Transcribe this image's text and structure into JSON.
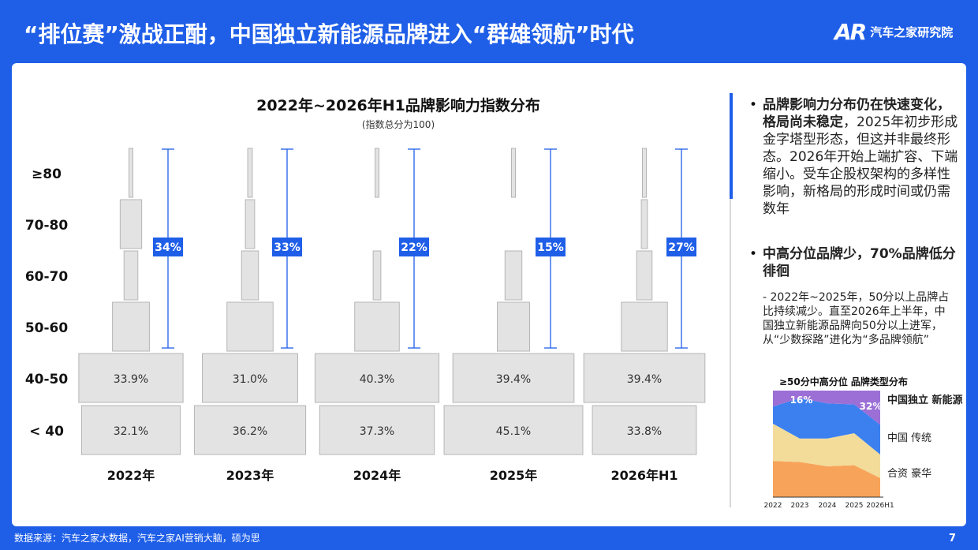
{
  "page": {
    "title": "“排位赛”激战正酣，中国独立新能源品牌进入“群雄领航”时代",
    "logo_text": "汽车之家研究院",
    "logo_mark": "AR",
    "footer": "数据来源：汽车之家大数据，汽车之家AI营销大脑，硕为思",
    "page_number": "7",
    "colors": {
      "brand_blue": "#1f5fe8",
      "bar_gray": "#e3e3e3",
      "purple": "#9b6fd6",
      "blue": "#3c80f0",
      "yellow": "#f3dc9a",
      "orange": "#f7a45a"
    }
  },
  "chart_data": [
    {
      "type": "bar",
      "title": "2022年~2026年H1品牌影响力指数分布",
      "subtitle": "(指数总分为100)",
      "categories": [
        "≥80",
        "70-80",
        "60-70",
        "50-60",
        "40-50",
        "< 40"
      ],
      "years": [
        "2022年",
        "2023年",
        "2024年",
        "2025年",
        "2026年H1"
      ],
      "series": [
        {
          "name": "2022年",
          "values": [
            0.5,
            7.0,
            4.5,
            12.0,
            33.9,
            32.1
          ],
          "labels": [
            "",
            "",
            "",
            "",
            "33.9%",
            "32.1%"
          ],
          "above50_pct": "34%"
        },
        {
          "name": "2023年",
          "values": [
            1.5,
            3.0,
            5.5,
            15.0,
            31.0,
            36.2
          ],
          "labels": [
            "",
            "",
            "",
            "",
            "31.0%",
            "36.2%"
          ],
          "above50_pct": "33%"
        },
        {
          "name": "2024年",
          "values": [
            0.5,
            0.0,
            2.5,
            14.5,
            40.3,
            37.3
          ],
          "labels": [
            "",
            "",
            "",
            "",
            "40.3%",
            "37.3%"
          ],
          "above50_pct": "22%"
        },
        {
          "name": "2025年",
          "values": [
            0.5,
            0.0,
            5.5,
            10.5,
            39.4,
            45.1
          ],
          "labels": [
            "",
            "",
            "",
            "",
            "39.4%",
            "45.1%"
          ],
          "above50_pct": "15%"
        },
        {
          "name": "2026年H1",
          "values": [
            0.8,
            2.0,
            5.0,
            15.0,
            39.4,
            33.8
          ],
          "labels": [
            "",
            "",
            "",
            "",
            "39.4%",
            "33.8%"
          ],
          "above50_pct": "27%"
        }
      ],
      "unit": "%"
    },
    {
      "type": "area",
      "title": "≥50分中高分位 品牌类型分布",
      "x": [
        "2022",
        "2023",
        "2024",
        "2025",
        "2026H1"
      ],
      "series": [
        {
          "name": "合资 豪华",
          "values": [
            34,
            33,
            29,
            30,
            18
          ]
        },
        {
          "name": "中国 传统",
          "values": [
            35,
            22,
            26,
            30,
            22
          ]
        },
        {
          "name": "中国独立 新能源",
          "values": [
            16,
            38,
            33,
            27,
            28
          ]
        },
        {
          "name": "",
          "values": [
            15,
            7,
            12,
            13,
            32
          ]
        }
      ],
      "annotations": [
        "16%",
        "32%"
      ],
      "ylim": [
        0,
        100
      ]
    }
  ],
  "insights": {
    "point1": {
      "bold": "品牌影响力分布仍在快速变化，格局尚未稳定",
      "text": "，2025年初步形成金字塔型形态，但这并非最终形态。2026年开始上端扩容、下端缩小。受车企股权架构的多样性影响，新格局的形成时间或仍需数年"
    },
    "point2": {
      "bold": "中高分位品牌少，70%品牌低分徘徊",
      "sub": "- 2022年~2025年，50分以上品牌占比持续减少。直至2026年上半年，中国独立新能源品牌向50分以上进军，从“少数探路”进化为“多品牌领航”"
    },
    "bullet": "•"
  }
}
